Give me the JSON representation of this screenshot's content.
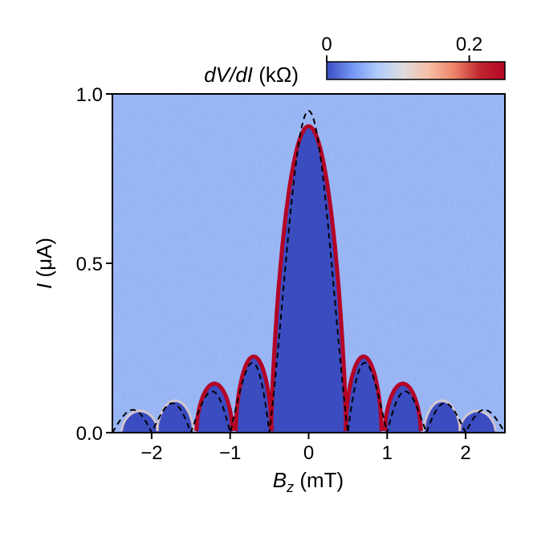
{
  "chart_data": {
    "type": "heatmap",
    "x_axis": {
      "ticks": [
        -2,
        -1,
        0,
        1,
        2
      ],
      "tick_labels": [
        "−2",
        "−1",
        "0",
        "1",
        "2"
      ],
      "range": [
        -2.5,
        2.5
      ]
    },
    "y_axis": {
      "ticks": [
        0.0,
        0.5,
        1.0
      ],
      "tick_labels": [
        "0.0",
        "0.5",
        "1.0"
      ],
      "range": [
        0.0,
        1.0
      ]
    },
    "xlabel": {
      "symbol": "B",
      "subscript": "z",
      "unit": " (mT)"
    },
    "ylabel": {
      "symbol": "I",
      "unit": " (μA)"
    },
    "colorbar": {
      "label_var": "dV/dI",
      "label_unit": " (kΩ)",
      "ticks": [
        0,
        0.2
      ],
      "tick_labels": [
        "0",
        "0.2"
      ],
      "range": [
        0,
        0.25
      ],
      "colormap": "coolwarm",
      "colors": [
        "#3b4cc0",
        "#7396f5",
        "#b0cbfc",
        "#dddcdc",
        "#f6bfa6",
        "#ee8468",
        "#c0282f",
        "#b40426"
      ]
    },
    "fraunhofer_fit": {
      "style": "dashed",
      "color": "#000000",
      "Ic0_uA": 0.95,
      "period_mT": 0.5,
      "envelope_decay_mT": 1.0
    },
    "critical_current_lobes": [
      {
        "B_center_mT": 0.0,
        "Ic_uA": 0.9
      },
      {
        "B_center_mT": -0.7,
        "Ic_uA": 0.22
      },
      {
        "B_center_mT": 0.7,
        "Ic_uA": 0.22
      },
      {
        "B_center_mT": -1.2,
        "Ic_uA": 0.14
      },
      {
        "B_center_mT": 1.2,
        "Ic_uA": 0.14
      },
      {
        "B_center_mT": -1.7,
        "Ic_uA": 0.09
      },
      {
        "B_center_mT": 1.7,
        "Ic_uA": 0.09
      },
      {
        "B_center_mT": -2.15,
        "Ic_uA": 0.06
      },
      {
        "B_center_mT": 2.15,
        "Ic_uA": 0.06
      }
    ],
    "background_level_kOhm": 0.06,
    "superconducting_level_kOhm": 0.0,
    "peak_level_kOhm": 0.25
  }
}
